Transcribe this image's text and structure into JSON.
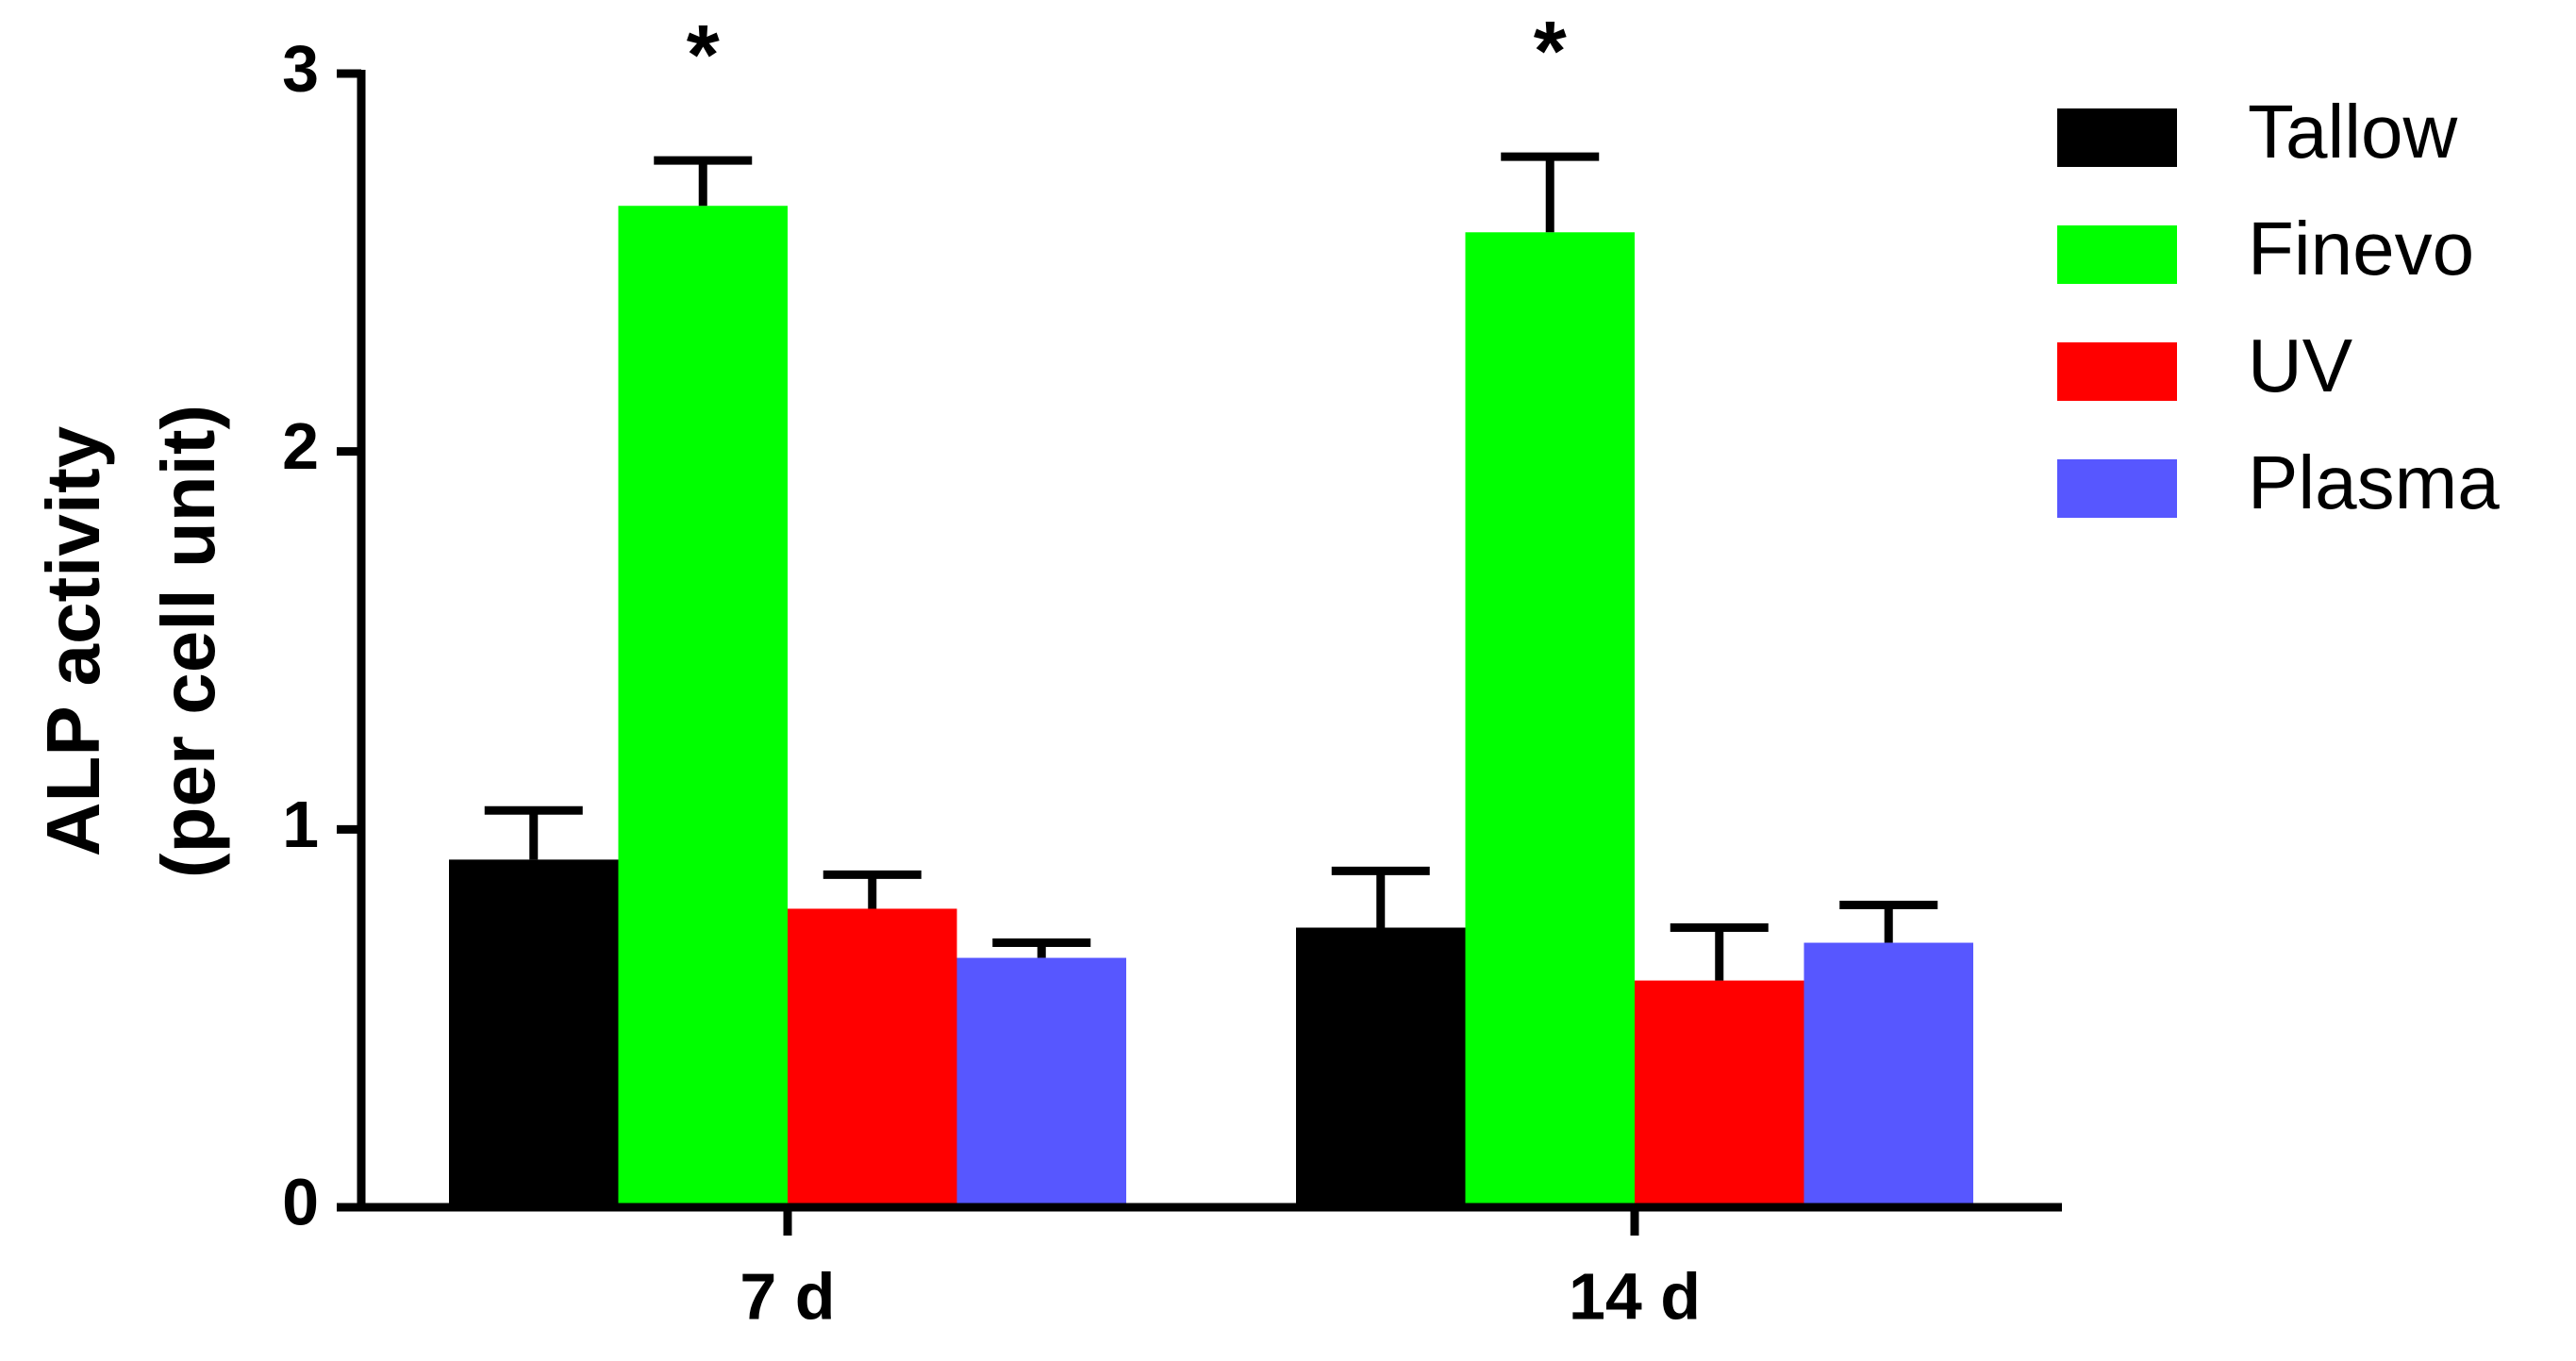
{
  "chart_data": {
    "type": "bar",
    "ylabel": [
      "ALP activity",
      "(per cell unit)"
    ],
    "categories": [
      "7 d",
      "14 d"
    ],
    "series": [
      {
        "name": "Tallow",
        "color": "#000000",
        "values": [
          0.92,
          0.74
        ],
        "errors": [
          0.13,
          0.15
        ]
      },
      {
        "name": "Finevo",
        "color": "#00ff00",
        "values": [
          2.65,
          2.58
        ],
        "errors": [
          0.12,
          0.2
        ],
        "significance": [
          "*",
          "*"
        ]
      },
      {
        "name": "UV",
        "color": "#ff0000",
        "values": [
          0.79,
          0.6
        ],
        "errors": [
          0.09,
          0.14
        ]
      },
      {
        "name": "Plasma",
        "color": "#5757ff",
        "values": [
          0.66,
          0.7
        ],
        "errors": [
          0.04,
          0.1
        ]
      }
    ],
    "ylim": [
      0,
      3
    ],
    "yticks": [
      0,
      1,
      2,
      3
    ],
    "grid": false,
    "legend": "right"
  }
}
